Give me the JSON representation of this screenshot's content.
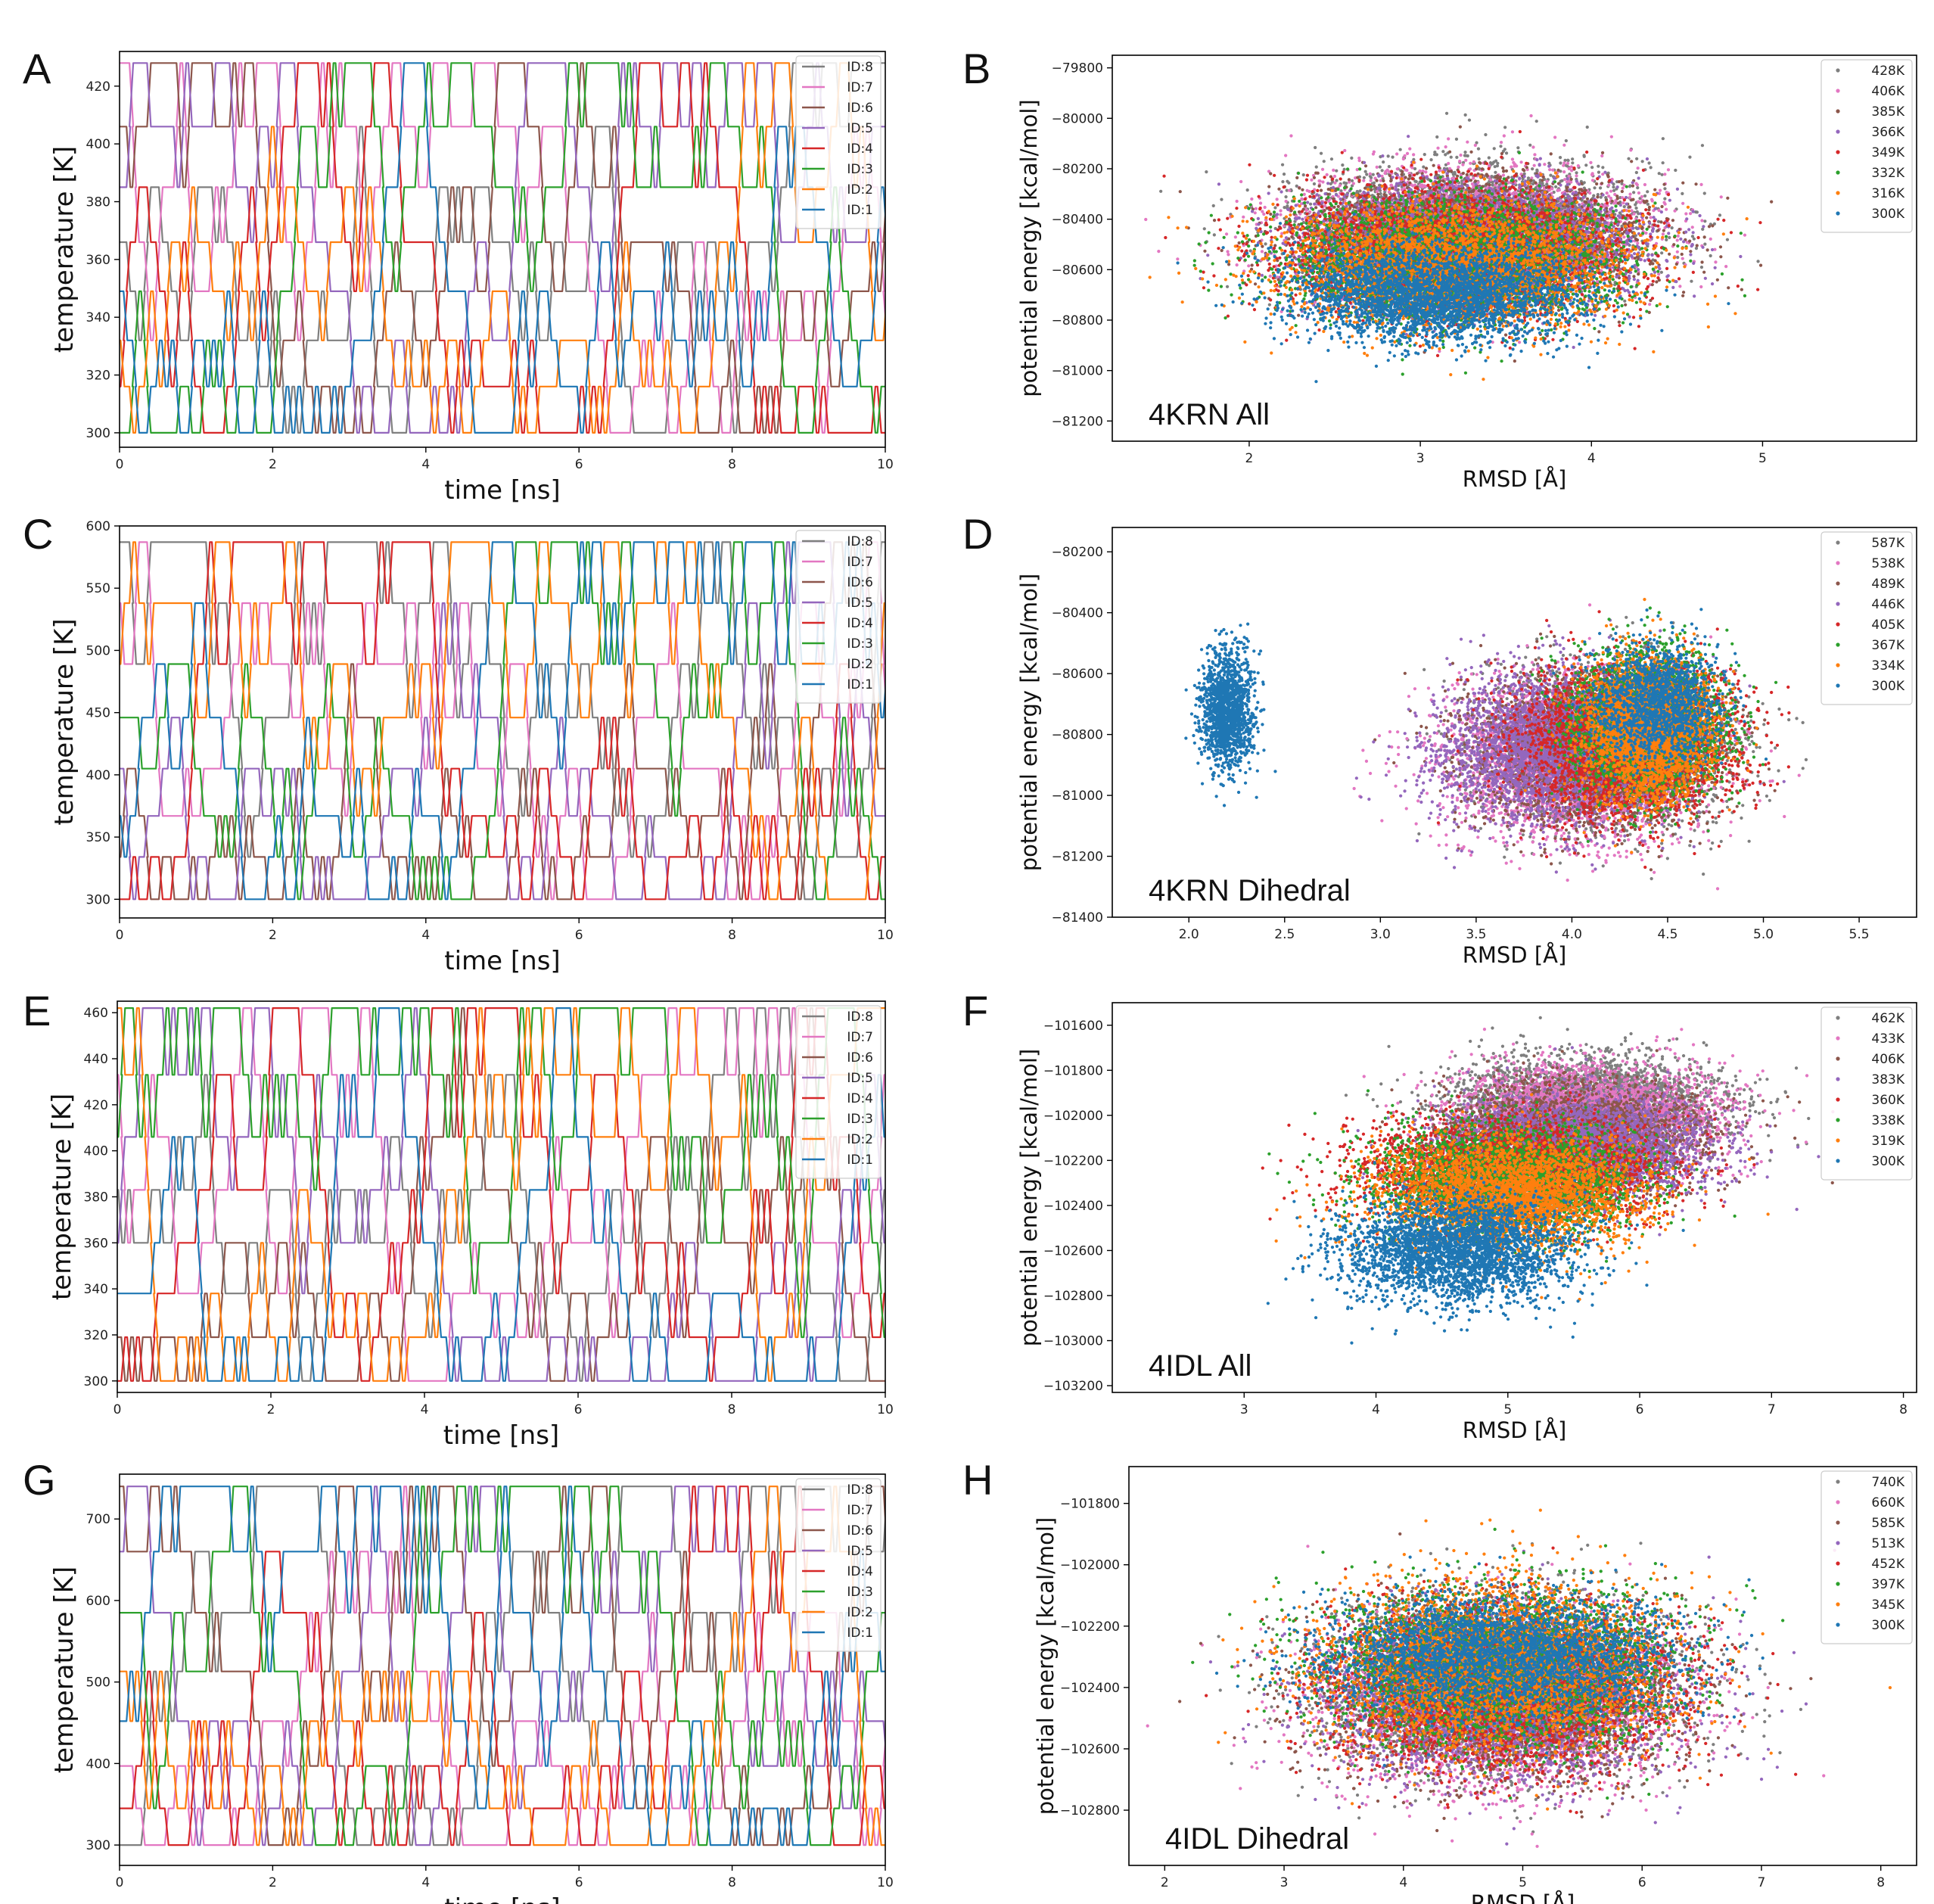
{
  "colors": {
    "ID:1": "#1f77b4",
    "ID:2": "#ff7f0e",
    "ID:3": "#2ca02c",
    "ID:4": "#d62728",
    "ID:5": "#9467bd",
    "ID:6": "#8c564b",
    "ID:7": "#e377c2",
    "ID:8": "#7f7f7f"
  },
  "chart_data": [
    {
      "id": "A",
      "panel_label": "A",
      "type": "line",
      "title": "",
      "xlabel": "time [ns]",
      "ylabel": "temperature [K]",
      "xlim": [
        0,
        10
      ],
      "ylim": [
        295,
        432
      ],
      "xticks": [
        0,
        2,
        4,
        6,
        8,
        10
      ],
      "yticks": [
        300,
        320,
        340,
        360,
        380,
        400,
        420
      ],
      "temperature_levels": [
        300,
        316,
        332,
        349,
        366,
        385,
        406,
        428
      ],
      "legend": [
        "ID:8",
        "ID:7",
        "ID:6",
        "ID:5",
        "ID:4",
        "ID:3",
        "ID:2",
        "ID:1"
      ],
      "legend_loc": "upper right",
      "series_note": "replica exchange temperature trajectories, 8 replicas over 10 ns"
    },
    {
      "id": "B",
      "panel_label": "B",
      "type": "scatter",
      "title": "",
      "annotation": "4KRN All",
      "xlabel": "RMSD [Å]",
      "ylabel": "potential energy [kcal/mol]",
      "xlim": [
        1.2,
        5.9
      ],
      "ylim": [
        -81280,
        -79750
      ],
      "xticks": [
        2,
        3,
        4,
        5
      ],
      "yticks": [
        -81200,
        -81000,
        -80800,
        -80600,
        -80400,
        -80200,
        -80000,
        -79800
      ],
      "legend": [
        "428K",
        "406K",
        "385K",
        "366K",
        "349K",
        "332K",
        "316K",
        "300K"
      ],
      "legend_loc": "upper right",
      "series": [
        {
          "name": "428K",
          "color": "#7f7f7f",
          "clusters": [
            {
              "x": 3.3,
              "y": -80420,
              "sx": 0.9,
              "sy": 150
            }
          ]
        },
        {
          "name": "406K",
          "color": "#e377c2",
          "clusters": [
            {
              "x": 3.3,
              "y": -80450,
              "sx": 0.9,
              "sy": 150
            }
          ]
        },
        {
          "name": "385K",
          "color": "#8c564b",
          "clusters": [
            {
              "x": 3.3,
              "y": -80480,
              "sx": 0.9,
              "sy": 150
            }
          ]
        },
        {
          "name": "366K",
          "color": "#9467bd",
          "clusters": [
            {
              "x": 3.3,
              "y": -80500,
              "sx": 0.9,
              "sy": 150
            }
          ]
        },
        {
          "name": "349K",
          "color": "#d62728",
          "clusters": [
            {
              "x": 3.2,
              "y": -80530,
              "sx": 0.9,
              "sy": 150
            }
          ]
        },
        {
          "name": "332K",
          "color": "#2ca02c",
          "clusters": [
            {
              "x": 3.2,
              "y": -80560,
              "sx": 0.9,
              "sy": 150
            }
          ]
        },
        {
          "name": "316K",
          "color": "#ff7f0e",
          "clusters": [
            {
              "x": 3.2,
              "y": -80580,
              "sx": 0.9,
              "sy": 150
            }
          ]
        },
        {
          "name": "300K",
          "color": "#1f77b4",
          "clusters": [
            {
              "x": 3.1,
              "y": -80700,
              "sx": 0.75,
              "sy": 120
            }
          ]
        }
      ]
    },
    {
      "id": "C",
      "panel_label": "C",
      "type": "line",
      "title": "",
      "xlabel": "time [ns]",
      "ylabel": "temperature [K]",
      "xlim": [
        0,
        10
      ],
      "ylim": [
        285,
        600
      ],
      "xticks": [
        0,
        2,
        4,
        6,
        8,
        10
      ],
      "yticks": [
        300,
        350,
        400,
        450,
        500,
        550,
        600
      ],
      "temperature_levels": [
        300,
        334,
        367,
        405,
        446,
        489,
        538,
        587
      ],
      "legend": [
        "ID:8",
        "ID:7",
        "ID:6",
        "ID:5",
        "ID:4",
        "ID:3",
        "ID:2",
        "ID:1"
      ],
      "legend_loc": "upper right",
      "series_note": "replica exchange temperature trajectories, 8 replicas over 10 ns"
    },
    {
      "id": "D",
      "panel_label": "D",
      "type": "scatter",
      "title": "",
      "annotation": "4KRN Dihedral",
      "xlabel": "RMSD [Å]",
      "ylabel": "potential energy [kcal/mol]",
      "xlim": [
        1.6,
        5.8
      ],
      "ylim": [
        -81400,
        -80120
      ],
      "xticks": [
        2.0,
        2.5,
        3.0,
        3.5,
        4.0,
        4.5,
        5.0,
        5.5
      ],
      "yticks": [
        -81400,
        -81200,
        -81000,
        -80800,
        -80600,
        -80400,
        -80200
      ],
      "legend": [
        "587K",
        "538K",
        "489K",
        "446K",
        "405K",
        "367K",
        "334K",
        "300K"
      ],
      "legend_loc": "upper right",
      "series": [
        {
          "name": "587K",
          "color": "#7f7f7f",
          "clusters": [
            {
              "x": 4.2,
              "y": -80850,
              "sx": 0.55,
              "sy": 150
            }
          ]
        },
        {
          "name": "538K",
          "color": "#e377c2",
          "clusters": [
            {
              "x": 4.0,
              "y": -80880,
              "sx": 0.6,
              "sy": 160
            }
          ]
        },
        {
          "name": "489K",
          "color": "#8c564b",
          "clusters": [
            {
              "x": 4.1,
              "y": -80850,
              "sx": 0.55,
              "sy": 150
            }
          ]
        },
        {
          "name": "446K",
          "color": "#9467bd",
          "clusters": [
            {
              "x": 3.9,
              "y": -80850,
              "sx": 0.55,
              "sy": 150
            }
          ]
        },
        {
          "name": "405K",
          "color": "#d62728",
          "clusters": [
            {
              "x": 4.3,
              "y": -80820,
              "sx": 0.5,
              "sy": 150
            }
          ]
        },
        {
          "name": "367K",
          "color": "#2ca02c",
          "clusters": [
            {
              "x": 4.4,
              "y": -80760,
              "sx": 0.35,
              "sy": 140
            }
          ]
        },
        {
          "name": "334K",
          "color": "#ff7f0e",
          "clusters": [
            {
              "x": 4.4,
              "y": -80780,
              "sx": 0.3,
              "sy": 140
            }
          ]
        },
        {
          "name": "300K",
          "color": "#1f77b4",
          "clusters": [
            {
              "x": 2.2,
              "y": -80720,
              "sx": 0.12,
              "sy": 120
            },
            {
              "x": 4.45,
              "y": -80700,
              "sx": 0.3,
              "sy": 120
            }
          ]
        }
      ]
    },
    {
      "id": "E",
      "panel_label": "E",
      "type": "line",
      "title": "",
      "xlabel": "time [ns]",
      "ylabel": "temperature [K]",
      "xlim": [
        0,
        10
      ],
      "ylim": [
        295,
        465
      ],
      "xticks": [
        0,
        2,
        4,
        6,
        8,
        10
      ],
      "yticks": [
        300,
        320,
        340,
        360,
        380,
        400,
        420,
        440,
        460
      ],
      "temperature_levels": [
        300,
        319,
        338,
        360,
        383,
        406,
        433,
        462
      ],
      "legend": [
        "ID:8",
        "ID:7",
        "ID:6",
        "ID:5",
        "ID:4",
        "ID:3",
        "ID:2",
        "ID:1"
      ],
      "legend_loc": "upper right",
      "series_note": "replica exchange temperature trajectories, 8 replicas over 10 ns"
    },
    {
      "id": "F",
      "panel_label": "F",
      "type": "scatter",
      "title": "",
      "annotation": "4IDL All",
      "xlabel": "RMSD [Å]",
      "ylabel": "potential energy [kcal/mol]",
      "xlim": [
        2.0,
        8.1
      ],
      "ylim": [
        -103230,
        -101500
      ],
      "xticks": [
        3,
        4,
        5,
        6,
        7,
        8
      ],
      "yticks": [
        -103200,
        -103000,
        -102800,
        -102600,
        -102400,
        -102200,
        -102000,
        -101800,
        -101600
      ],
      "legend": [
        "462K",
        "433K",
        "406K",
        "383K",
        "360K",
        "338K",
        "319K",
        "300K"
      ],
      "legend_loc": "upper right",
      "series": [
        {
          "name": "462K",
          "color": "#7f7f7f",
          "clusters": [
            {
              "x": 5.6,
              "y": -101950,
              "sx": 0.9,
              "sy": 130
            }
          ]
        },
        {
          "name": "433K",
          "color": "#e377c2",
          "clusters": [
            {
              "x": 5.6,
              "y": -102000,
              "sx": 0.9,
              "sy": 140
            }
          ]
        },
        {
          "name": "406K",
          "color": "#8c564b",
          "clusters": [
            {
              "x": 5.5,
              "y": -102100,
              "sx": 0.9,
              "sy": 140
            }
          ]
        },
        {
          "name": "383K",
          "color": "#9467bd",
          "clusters": [
            {
              "x": 5.5,
              "y": -102150,
              "sx": 0.9,
              "sy": 140
            }
          ]
        },
        {
          "name": "360K",
          "color": "#d62728",
          "clusters": [
            {
              "x": 5.0,
              "y": -102250,
              "sx": 1.0,
              "sy": 140
            }
          ]
        },
        {
          "name": "338K",
          "color": "#2ca02c",
          "clusters": [
            {
              "x": 5.0,
              "y": -102300,
              "sx": 0.9,
              "sy": 150
            }
          ]
        },
        {
          "name": "319K",
          "color": "#ff7f0e",
          "clusters": [
            {
              "x": 5.0,
              "y": -102350,
              "sx": 0.9,
              "sy": 150
            }
          ]
        },
        {
          "name": "300K",
          "color": "#1f77b4",
          "clusters": [
            {
              "x": 4.6,
              "y": -102600,
              "sx": 0.8,
              "sy": 140
            }
          ]
        }
      ]
    },
    {
      "id": "G",
      "panel_label": "G",
      "type": "line",
      "title": "",
      "xlabel": "time [ns]",
      "ylabel": "temperature [K]",
      "xlim": [
        0,
        10
      ],
      "ylim": [
        275,
        755
      ],
      "xticks": [
        0,
        2,
        4,
        6,
        8,
        10
      ],
      "yticks": [
        300,
        400,
        500,
        600,
        700
      ],
      "temperature_levels": [
        300,
        345,
        397,
        452,
        513,
        585,
        660,
        740
      ],
      "legend": [
        "ID:8",
        "ID:7",
        "ID:6",
        "ID:5",
        "ID:4",
        "ID:3",
        "ID:2",
        "ID:1"
      ],
      "legend_loc": "upper right",
      "series_note": "replica exchange temperature trajectories, 8 replicas over 10 ns"
    },
    {
      "id": "H",
      "panel_label": "H",
      "type": "scatter",
      "title": "",
      "annotation": "4IDL Dihedral",
      "xlabel": "RMSD [Å]",
      "ylabel": "potential energy [kcal/mol]",
      "xlim": [
        1.7,
        8.3
      ],
      "ylim": [
        -102980,
        -101680
      ],
      "xticks": [
        2,
        3,
        4,
        5,
        6,
        7,
        8
      ],
      "yticks": [
        -102800,
        -102600,
        -102400,
        -102200,
        -102000,
        -101800
      ],
      "legend": [
        "740K",
        "660K",
        "585K",
        "513K",
        "452K",
        "397K",
        "345K",
        "300K"
      ],
      "legend_loc": "upper right",
      "series": [
        {
          "name": "740K",
          "color": "#7f7f7f",
          "clusters": [
            {
              "x": 4.8,
              "y": -102400,
              "sx": 1.3,
              "sy": 170
            }
          ]
        },
        {
          "name": "660K",
          "color": "#e377c2",
          "clusters": [
            {
              "x": 4.8,
              "y": -102450,
              "sx": 1.3,
              "sy": 170
            }
          ]
        },
        {
          "name": "585K",
          "color": "#8c564b",
          "clusters": [
            {
              "x": 4.8,
              "y": -102420,
              "sx": 1.3,
              "sy": 170
            }
          ]
        },
        {
          "name": "513K",
          "color": "#9467bd",
          "clusters": [
            {
              "x": 4.8,
              "y": -102420,
              "sx": 1.3,
              "sy": 170
            }
          ]
        },
        {
          "name": "452K",
          "color": "#d62728",
          "clusters": [
            {
              "x": 4.8,
              "y": -102400,
              "sx": 1.3,
              "sy": 160
            }
          ]
        },
        {
          "name": "397K",
          "color": "#2ca02c",
          "clusters": [
            {
              "x": 4.8,
              "y": -102330,
              "sx": 1.3,
              "sy": 160
            }
          ]
        },
        {
          "name": "345K",
          "color": "#ff7f0e",
          "clusters": [
            {
              "x": 4.8,
              "y": -102330,
              "sx": 1.3,
              "sy": 170
            }
          ]
        },
        {
          "name": "300K",
          "color": "#1f77b4",
          "clusters": [
            {
              "x": 4.8,
              "y": -102300,
              "sx": 1.3,
              "sy": 120
            }
          ]
        }
      ]
    }
  ]
}
